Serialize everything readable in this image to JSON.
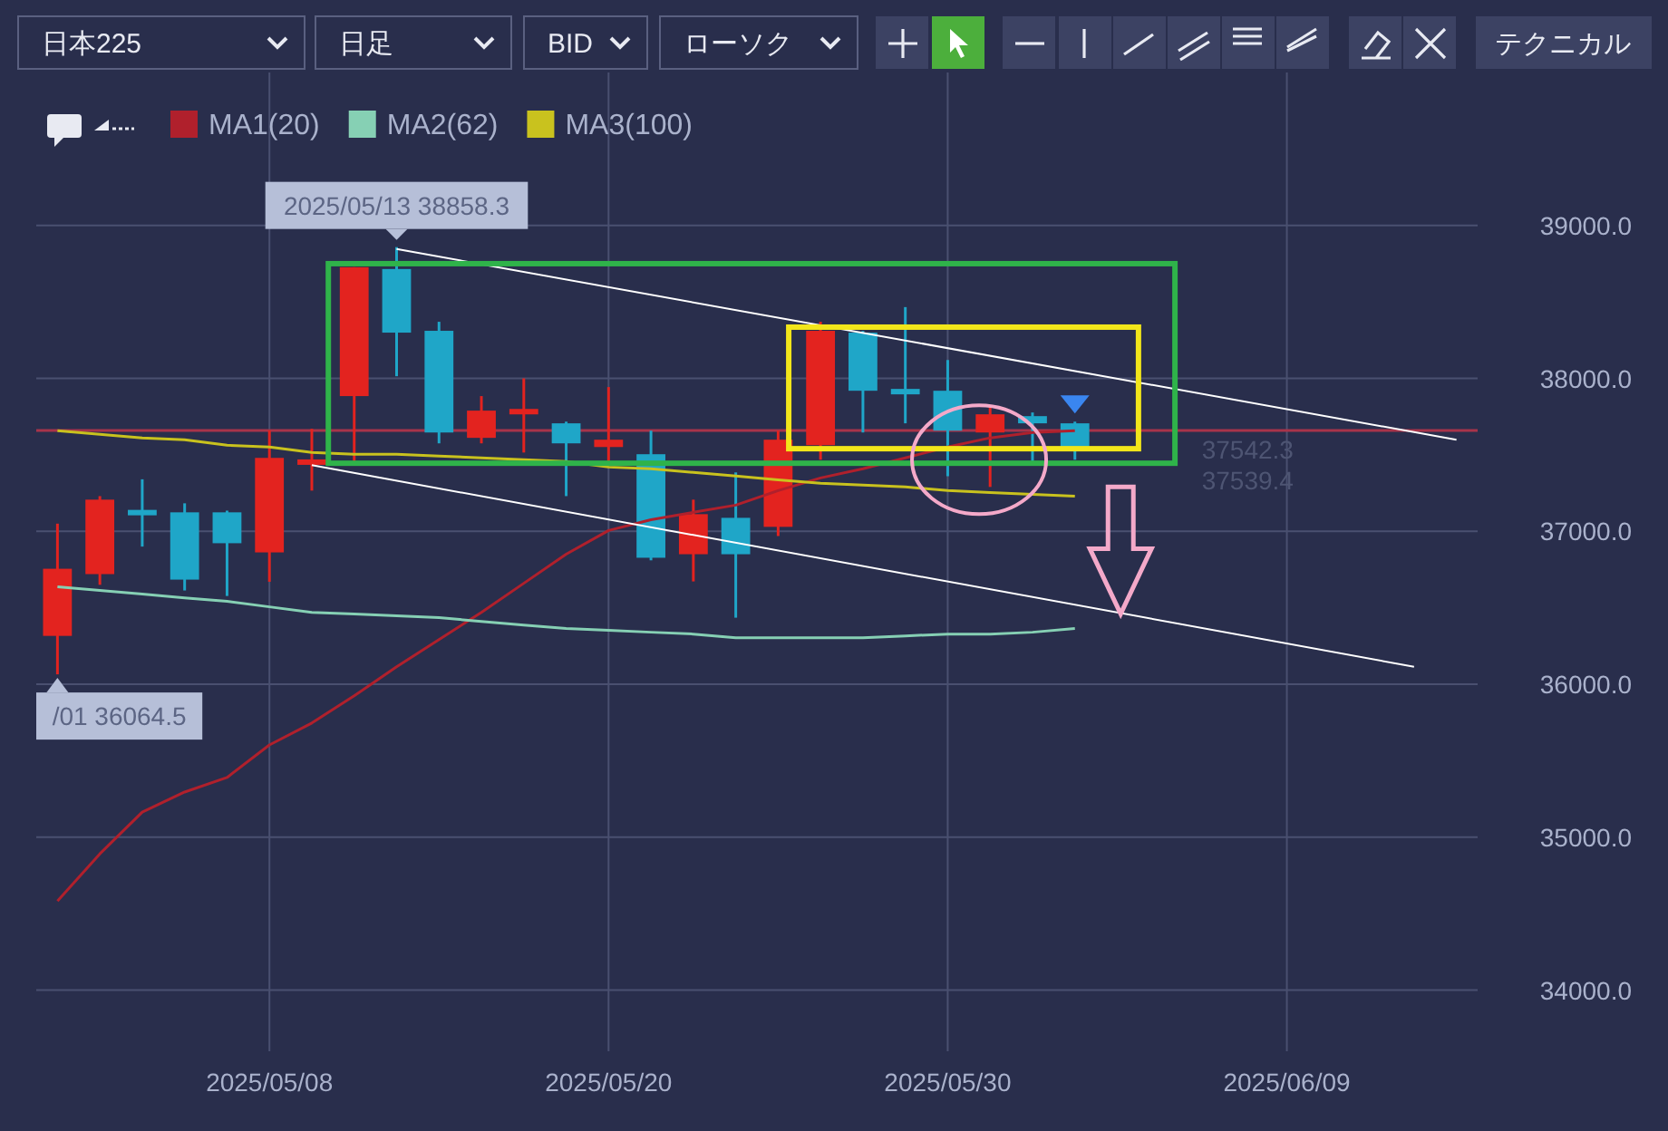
{
  "chart_data": {
    "type": "candlestick",
    "categories": [
      null,
      null,
      null,
      null,
      null,
      "2025/05/08",
      null,
      null,
      null,
      null,
      null,
      null,
      null,
      "2025/05/20",
      null,
      null,
      null,
      null,
      null,
      null,
      null,
      "2025/05/30",
      null,
      null,
      null,
      null,
      null,
      null,
      null,
      "2025/06/09",
      null,
      null,
      null,
      null
    ],
    "ohlc": [
      [
        36316,
        37050,
        36064.5,
        36755
      ],
      [
        36720,
        37230,
        36650,
        37207
      ],
      [
        37140,
        37340,
        36900,
        37130
      ],
      [
        37124,
        37183,
        36613,
        36684
      ],
      [
        37124,
        37135,
        36577,
        36922
      ],
      [
        36862,
        37660,
        36670,
        37480
      ],
      [
        37440,
        37670,
        37266,
        37470
      ],
      [
        37884,
        38727,
        37444,
        38727
      ],
      [
        38715,
        38858.3,
        38014,
        38299
      ],
      [
        38311,
        38370,
        37575,
        37646
      ],
      [
        37611,
        37884,
        37575,
        37789
      ],
      [
        37765,
        38000,
        37515,
        37800
      ],
      [
        37706,
        37717,
        37230,
        37575
      ],
      [
        37551,
        37943,
        37444,
        37599
      ],
      [
        37504,
        37658,
        36810,
        36827
      ],
      [
        36850,
        37207,
        36672,
        37112
      ],
      [
        37088,
        37385,
        36435,
        36850
      ],
      [
        37029,
        37658,
        36969,
        37599
      ],
      [
        37563,
        38370,
        37468,
        38311
      ],
      [
        38299,
        38310,
        37646,
        37919
      ],
      [
        37931,
        38466,
        37706,
        37896
      ],
      [
        37919,
        38120,
        37360,
        37658
      ],
      [
        37646,
        37824,
        37290,
        37765
      ],
      [
        37753,
        37777,
        37444,
        37706
      ],
      [
        37706,
        37717,
        37468,
        37539.4
      ],
      null,
      null,
      null,
      null,
      null,
      null,
      null,
      null,
      null
    ],
    "colors": [
      "#e3231f",
      "#e3231f",
      "#1fa6c8",
      "#1fa6c8",
      "#1fa6c8",
      "#e3231f",
      "#e3231f",
      "#e3231f",
      "#1fa6c8",
      "#1fa6c8",
      "#e3231f",
      "#e3231f",
      "#1fa6c8",
      "#e3231f",
      "#1fa6c8",
      "#e3231f",
      "#1fa6c8",
      "#e3231f",
      "#e3231f",
      "#1fa6c8",
      "#1fa6c8",
      "#1fa6c8",
      "#e3231f",
      "#1fa6c8",
      "#1fa6c8",
      null,
      null,
      null,
      null,
      null,
      null,
      null,
      null,
      null
    ],
    "series": [
      {
        "name": "MA1(20)",
        "type": "line",
        "color": "#b0202c",
        "values": [
          34582,
          34891,
          35164,
          35295,
          35390,
          35603,
          35746,
          35924,
          36114,
          36292,
          36470,
          36660,
          36850,
          37005,
          37076,
          37124,
          37171,
          37266,
          37349,
          37409,
          37480,
          37551,
          37611,
          37646,
          37658,
          null,
          null,
          null,
          null,
          null,
          null,
          null,
          null,
          null
        ]
      },
      {
        "name": "MA2(62)",
        "type": "line",
        "color": "#86d0b4",
        "values": [
          36637,
          36613,
          36589,
          36565,
          36542,
          36506,
          36470,
          36459,
          36447,
          36435,
          36411,
          36387,
          36364,
          36352,
          36340,
          36328,
          36304,
          36304,
          36304,
          36304,
          36316,
          36328,
          36328,
          36340,
          36364,
          null,
          null,
          null,
          null,
          null,
          null,
          null,
          null,
          null
        ]
      },
      {
        "name": "MA3(100)",
        "type": "line",
        "color": "#c9c21e",
        "values": [
          37658,
          37634,
          37611,
          37599,
          37563,
          37551,
          37516,
          37504,
          37504,
          37492,
          37480,
          37468,
          37456,
          37420,
          37409,
          37385,
          37361,
          37337,
          37314,
          37302,
          37290,
          37266,
          37254,
          37242,
          37230,
          null,
          null,
          null,
          null,
          null,
          null,
          null,
          null,
          null
        ]
      },
      {
        "type": "line",
        "color": "#ffffff",
        "values": [
          null,
          null,
          null,
          null,
          null,
          null,
          null,
          null,
          38846,
          null,
          null,
          null,
          null,
          null,
          null,
          null,
          null,
          null,
          null,
          null,
          null,
          null,
          null,
          null,
          null,
          null,
          null,
          null,
          null,
          null,
          null,
          null,
          null,
          37599
        ]
      },
      {
        "type": "line",
        "color": "#ffffff",
        "values": [
          null,
          null,
          null,
          null,
          null,
          null,
          37432,
          null,
          null,
          null,
          null,
          null,
          null,
          null,
          null,
          null,
          null,
          null,
          null,
          null,
          null,
          null,
          null,
          null,
          null,
          null,
          null,
          null,
          null,
          null,
          null,
          null,
          36114,
          null
        ]
      }
    ],
    "ylim": [
      33600,
      40000
    ],
    "yticks": [
      {
        "value": 34000,
        "label": "34000.0"
      },
      {
        "value": 35000,
        "label": "35000.0"
      },
      {
        "value": 36000,
        "label": "36000.0"
      },
      {
        "value": 37000,
        "label": "37000.0"
      },
      {
        "value": 38000,
        "label": "38000.0"
      },
      {
        "value": 39000,
        "label": "39000.0"
      }
    ],
    "ref_lines": [
      {
        "axis": "y",
        "value": 37660,
        "color": "#a8344a"
      }
    ],
    "grid": true,
    "legend": "top left",
    "annotations": [
      "日本225",
      "日足",
      "BID",
      "ローソク",
      "テクニカル",
      "2025/05/13 38858.3",
      "/01 36064.5",
      "37542.3",
      "37539.4"
    ]
  }
}
